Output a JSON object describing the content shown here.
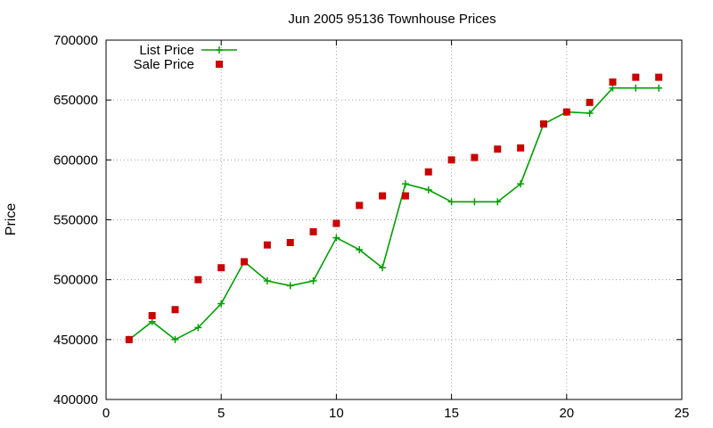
{
  "chart_data": {
    "type": "line",
    "title": "Jun 2005 95136 Townhouse Prices",
    "xlabel": "",
    "ylabel": "Price",
    "xlim": [
      0,
      25
    ],
    "ylim": [
      400000,
      700000
    ],
    "xticks": [
      0,
      5,
      10,
      15,
      20,
      25
    ],
    "yticks": [
      400000,
      450000,
      500000,
      550000,
      600000,
      650000,
      700000
    ],
    "xtick_labels": [
      "0",
      "5",
      "10",
      "15",
      "20",
      "25"
    ],
    "ytick_labels": [
      "400000",
      "450000",
      "500000",
      "550000",
      "600000",
      "650000",
      "700000"
    ],
    "grid": true,
    "legend_position": "top-left",
    "series": [
      {
        "name": "List Price",
        "style": "line-with-plus-markers",
        "color": "#00a000",
        "x": [
          1,
          2,
          3,
          4,
          5,
          6,
          7,
          8,
          9,
          10,
          11,
          12,
          13,
          14,
          15,
          16,
          17,
          18,
          19,
          20,
          21,
          22,
          23,
          24
        ],
        "values": [
          450000,
          465000,
          450000,
          460000,
          480000,
          515000,
          499000,
          495000,
          499000,
          535000,
          525000,
          510000,
          580000,
          575000,
          565000,
          565000,
          565000,
          580000,
          630000,
          640000,
          639000,
          660000,
          660000,
          660000
        ]
      },
      {
        "name": "Sale Price",
        "style": "square-markers",
        "color": "#cc0000",
        "x": [
          1,
          2,
          3,
          4,
          5,
          6,
          7,
          8,
          9,
          10,
          11,
          12,
          13,
          14,
          15,
          16,
          17,
          18,
          19,
          20,
          21,
          22,
          23,
          24
        ],
        "values": [
          450000,
          470000,
          475000,
          500000,
          510000,
          515000,
          529000,
          531000,
          540000,
          547000,
          562000,
          570000,
          570000,
          590000,
          600000,
          602000,
          609000,
          610000,
          630000,
          640000,
          648000,
          665000,
          669000,
          669000
        ]
      }
    ]
  }
}
